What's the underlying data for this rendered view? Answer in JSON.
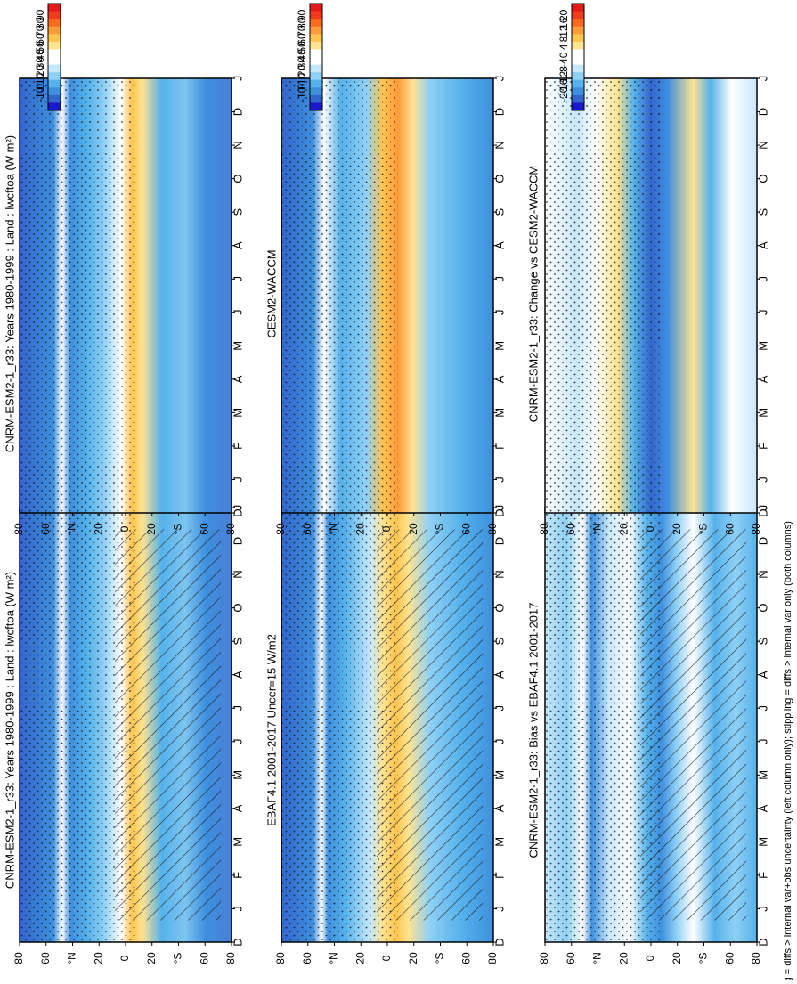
{
  "figure": {
    "footnote": "hatching = diffs > internal var+obs uncertainty (left column only); stippling = diffs > internal var only (both columns)"
  },
  "chart_data": [
    {
      "type": "heatmap",
      "title": "CNRM-ESM2-1_r33: Years 1980-1999 : Land : lwcftoa (W m²)",
      "x_ticks": [
        "D",
        "J",
        "F",
        "M",
        "A",
        "M",
        "J",
        "J",
        "A",
        "S",
        "O",
        "N",
        "D",
        "J"
      ],
      "y_ticks": [
        "80",
        "60",
        "°N",
        "20",
        "0",
        "20",
        "°S",
        "60",
        "80"
      ],
      "colorbar": {
        "ticks": [
          "90",
          "80",
          "70",
          "60",
          "50",
          "40",
          "30",
          "20",
          "10",
          "0",
          "-10"
        ]
      },
      "stippling": true,
      "hatching": true
    },
    {
      "type": "heatmap",
      "title": "CNRM-ESM2-1_r33: Years 1980-1999 : Land : lwcftoa (W m²)",
      "x_ticks": [
        "D",
        "J",
        "F",
        "M",
        "A",
        "M",
        "J",
        "J",
        "A",
        "S",
        "O",
        "N",
        "D",
        "J"
      ],
      "y_ticks": [
        "80",
        "60",
        "°N",
        "20",
        "0",
        "20",
        "°S",
        "60",
        "80"
      ],
      "colorbar": {
        "ticks": [
          "90",
          "80",
          "70",
          "60",
          "50",
          "40",
          "30",
          "20",
          "10",
          "0",
          "-10"
        ]
      },
      "stippling": true,
      "hatching": false
    },
    {
      "type": "heatmap",
      "title": "EBAF4.1 2001-2017 Uncer=15 W/m2",
      "x_ticks": [
        "D",
        "J",
        "F",
        "M",
        "A",
        "M",
        "J",
        "J",
        "A",
        "S",
        "O",
        "N",
        "D",
        "J"
      ],
      "y_ticks": [
        "80",
        "60",
        "°N",
        "20",
        "0",
        "20",
        "°S",
        "60",
        "80"
      ],
      "colorbar": {
        "ticks": [
          "90",
          "80",
          "70",
          "60",
          "50",
          "40",
          "30",
          "20",
          "10",
          "0",
          "-10"
        ]
      },
      "stippling": true,
      "hatching": true
    },
    {
      "type": "heatmap",
      "title": "CESM2-WACCM",
      "x_ticks": [
        "D",
        "J",
        "F",
        "M",
        "A",
        "M",
        "J",
        "J",
        "A",
        "S",
        "O",
        "N",
        "D",
        "J"
      ],
      "y_ticks": [
        "80",
        "60",
        "°N",
        "20",
        "0",
        "20",
        "°S",
        "60",
        "80"
      ],
      "colorbar": {
        "ticks": [
          "90",
          "80",
          "70",
          "60",
          "50",
          "40",
          "30",
          "20",
          "10",
          "0",
          "-10"
        ]
      },
      "stippling": true,
      "hatching": false
    },
    {
      "type": "heatmap",
      "title": "CNRM-ESM2-1_r33: Bias vs EBAF4.1 2001-2017",
      "x_ticks": [
        "D",
        "J",
        "F",
        "M",
        "A",
        "M",
        "J",
        "J",
        "A",
        "S",
        "O",
        "N",
        "D",
        "J"
      ],
      "y_ticks": [
        "80",
        "60",
        "°N",
        "20",
        "0",
        "20",
        "°S",
        "60",
        "80"
      ],
      "colorbar": {
        "ticks": [
          "20",
          "16",
          "12",
          "8",
          "4",
          "0",
          "-4",
          "-8",
          "-12",
          "-16",
          "-20"
        ]
      },
      "stippling": true,
      "hatching": true
    },
    {
      "type": "heatmap",
      "title": "CNRM-ESM2-1_r33: Change vs CESM2-WACCM",
      "x_ticks": [
        "D",
        "J",
        "F",
        "M",
        "A",
        "M",
        "J",
        "J",
        "A",
        "S",
        "O",
        "N",
        "D",
        "J"
      ],
      "y_ticks": [
        "80",
        "60",
        "°N",
        "20",
        "0",
        "20",
        "°S",
        "60",
        "80"
      ],
      "colorbar": {
        "ticks": [
          "20",
          "16",
          "12",
          "8",
          "4",
          "0",
          "-4",
          "-8",
          "-12",
          "-16",
          "-20"
        ]
      },
      "stippling": true,
      "hatching": false
    }
  ],
  "palettes": {
    "abs": [
      "#e31a1c",
      "#f03b20",
      "#fd6a1f",
      "#fd9a3a",
      "#fec44f",
      "#fee391",
      "#ffffff",
      "#ffffff",
      "#c6e8fb",
      "#8fd0f5",
      "#55b1ea",
      "#3e8fde",
      "#3366cc",
      "#1a1acc"
    ],
    "diff": [
      "#e31a1c",
      "#f03b20",
      "#fd6a1f",
      "#fd9a3a",
      "#fec44f",
      "#fee391",
      "#ffffff",
      "#ffffff",
      "#c6e8fb",
      "#8fd0f5",
      "#55b1ea",
      "#3e8fde",
      "#3366cc",
      "#1a1acc"
    ]
  }
}
